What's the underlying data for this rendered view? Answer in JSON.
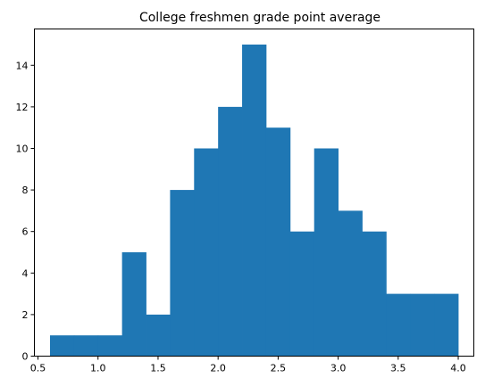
{
  "chart_data": {
    "type": "bar",
    "title": "College freshmen grade point average",
    "xlabel": "",
    "ylabel": "",
    "xlim": [
      0.47,
      4.13
    ],
    "ylim": [
      0,
      15.75
    ],
    "xticks": [
      0.5,
      1.0,
      1.5,
      2.0,
      2.5,
      3.0,
      3.5,
      4.0
    ],
    "xtick_labels": [
      "0.5",
      "1.0",
      "1.5",
      "2.0",
      "2.5",
      "3.0",
      "3.5",
      "4.0"
    ],
    "yticks": [
      0,
      2,
      4,
      6,
      8,
      10,
      12,
      14
    ],
    "ytick_labels": [
      "0",
      "2",
      "4",
      "6",
      "8",
      "10",
      "12",
      "14"
    ],
    "bin_edges": [
      0.6,
      0.8,
      1.0,
      1.2,
      1.4,
      1.6,
      1.8,
      2.0,
      2.2,
      2.4,
      2.6,
      2.8,
      3.0,
      3.2,
      3.4,
      3.6,
      3.8,
      4.0
    ],
    "values": [
      1,
      1,
      1,
      5,
      2,
      8,
      10,
      12,
      15,
      11,
      6,
      10,
      7,
      6,
      3,
      3,
      3
    ],
    "bar_color": "#1f77b4",
    "grid": false,
    "legend": "none"
  }
}
